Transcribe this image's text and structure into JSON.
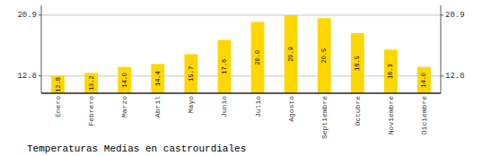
{
  "chart_data": {
    "type": "bar",
    "title": "Temperaturas Medias en castrourdiales",
    "categories": [
      "Enero",
      "Febrero",
      "Marzo",
      "Abril",
      "Mayo",
      "Junio",
      "Julio",
      "Agosto",
      "Septiembre",
      "Octubre",
      "Noviembre",
      "Diciembre"
    ],
    "values": [
      12.8,
      13.2,
      14.0,
      14.4,
      15.7,
      17.6,
      20.0,
      20.9,
      20.5,
      18.5,
      16.3,
      14.0
    ],
    "value_labels": [
      "12.8",
      "13.2",
      "14.0",
      "14.4",
      "15.7",
      "17.6",
      "20.0",
      "20.9",
      "20.5",
      "18.5",
      "16.3",
      "14.0"
    ],
    "data_labels": true,
    "color": "#FFD700",
    "ylim": [
      10.5,
      22.2
    ],
    "yticks": [
      12.8,
      20.9
    ],
    "y2lim": [
      10.5,
      22.2
    ],
    "y2ticks": [
      12.8,
      20.9
    ],
    "grid": true
  }
}
